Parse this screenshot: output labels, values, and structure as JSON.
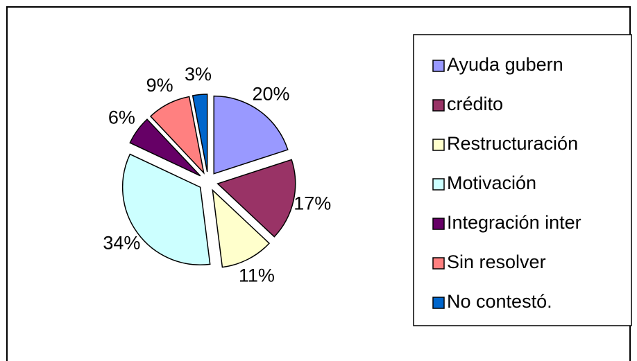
{
  "chart_data": {
    "type": "pie",
    "categories": [
      "Ayuda gubern",
      "crédito",
      "Restructuración",
      "Motivación",
      "Integración inter",
      "Sin resolver",
      "No contestó."
    ],
    "values": [
      20,
      17,
      11,
      34,
      6,
      9,
      3
    ],
    "value_labels": [
      "20%",
      "17%",
      "11%",
      "34%",
      "6%",
      "9%",
      "3%"
    ],
    "colors": [
      "#9999ff",
      "#993366",
      "#ffffcc",
      "#ccffff",
      "#660066",
      "#ff8080",
      "#0066cc"
    ],
    "legend": "right"
  }
}
